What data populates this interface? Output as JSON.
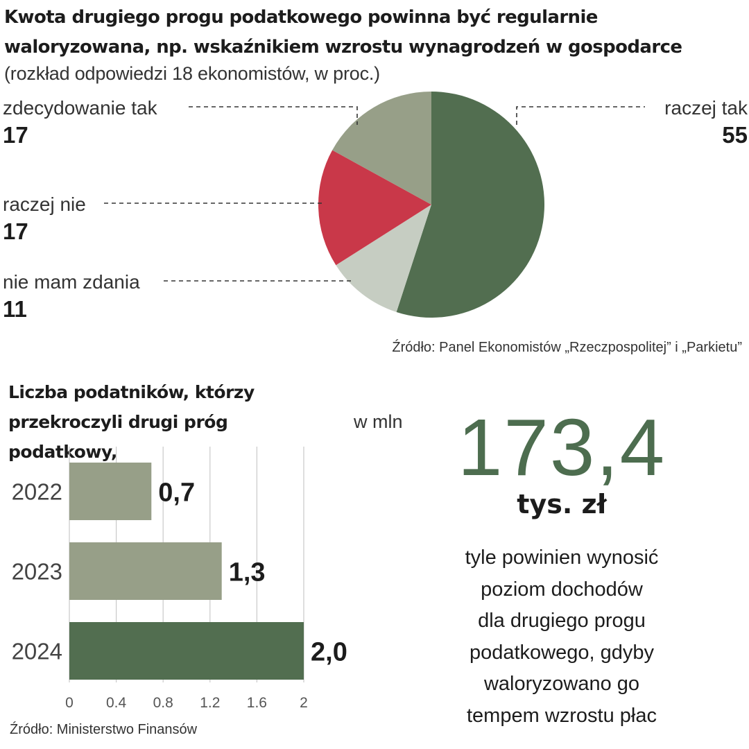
{
  "chart_data": [
    {
      "type": "pie",
      "title": "Kwota drugiego progu podatkowego powinna być regularnie waloryzowana, np. wskaźnikiem wzrostu wynagrodzeń w gospodarce",
      "subtitle": "(rozkład odpowiedzi 18 ekonomistów, w proc.)",
      "slices": [
        {
          "label": "raczej tak",
          "value": 55,
          "color": "#526e50"
        },
        {
          "label": "nie mam zdania",
          "value": 11,
          "color": "#c6cdc2"
        },
        {
          "label": "raczej nie",
          "value": 17,
          "color": "#c93849"
        },
        {
          "label": "zdecydowanie tak",
          "value": 17,
          "color": "#979f88"
        }
      ],
      "source": "Źródło: Panel Ekonomistów „Rzeczpospolitej” i „Parkietu”"
    },
    {
      "type": "bar",
      "orientation": "horizontal",
      "title": "Liczba podatników, którzy przekroczyli drugi próg podatkowy,",
      "unit": "w mln",
      "categories": [
        "2022",
        "2023",
        "2024"
      ],
      "values": [
        0.7,
        1.3,
        2.0
      ],
      "value_labels": [
        "0,7",
        "1,3",
        "2,0"
      ],
      "bar_colors": [
        "#979f88",
        "#979f88",
        "#526e50"
      ],
      "xlim": [
        0,
        2
      ],
      "x_ticks": [
        "0",
        "0.4",
        "0.8",
        "1.2",
        "1.6",
        "2"
      ],
      "grid": true,
      "source": "Źródło: Ministerstwo Finansów"
    }
  ],
  "highlight": {
    "number": "173,4",
    "unit": "tys. zł",
    "description_lines": [
      "tyle powinien wynosić",
      "poziom dochodów",
      "dla drugiego progu",
      "podatkowego, gdyby",
      "waloryzowano go",
      "tempem wzrostu płac"
    ],
    "number_color": "#4d6d4f"
  }
}
